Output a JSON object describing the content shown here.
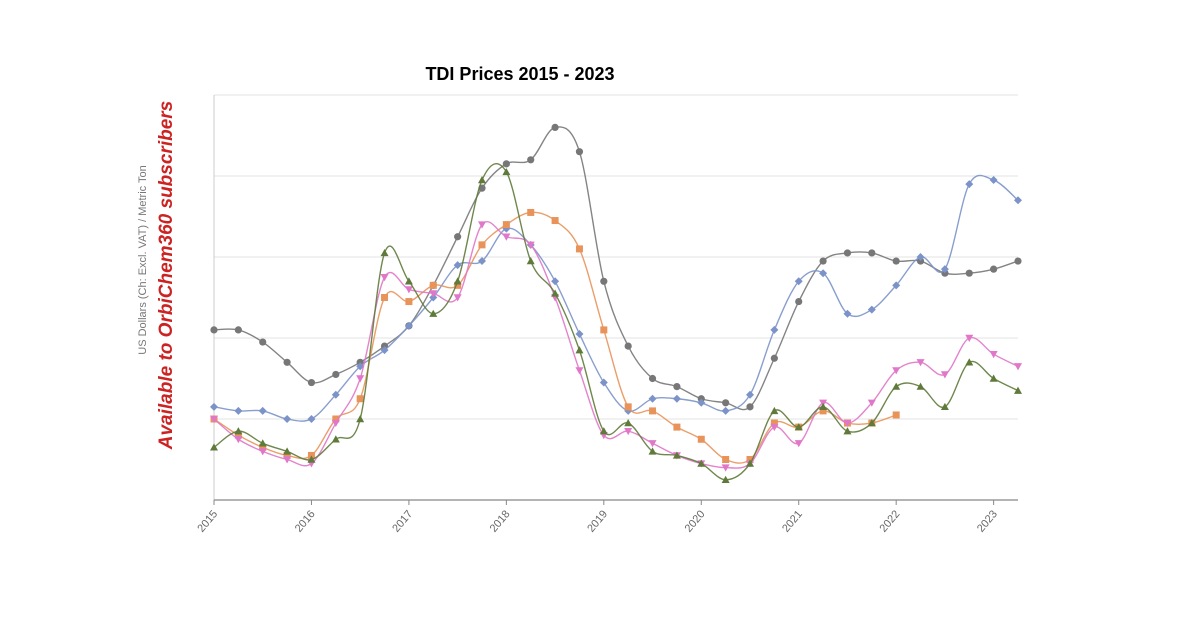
{
  "chart_data": {
    "type": "line",
    "title": "TDI Prices 2015 - 2023",
    "ylabel": "US Dollars (Ch: Excl. VAT) / Metric Ton",
    "watermark": "Available to OrbiChem360 subscribers",
    "xlim": [
      2015,
      2023.25
    ],
    "ylim": [
      0,
      10
    ],
    "x_ticks": [
      "2015",
      "2016",
      "2017",
      "2018",
      "2019",
      "2020",
      "2021",
      "2022",
      "2023"
    ],
    "y_tick_labels_visible": false,
    "grid": "horizontal",
    "series": [
      {
        "color": "#777777",
        "marker": "circle",
        "x": [
          2015.0,
          2015.25,
          2015.5,
          2015.75,
          2016.0,
          2016.25,
          2016.5,
          2016.75,
          2017.0,
          2017.25,
          2017.5,
          2017.75,
          2018.0,
          2018.25,
          2018.5,
          2018.75,
          2019.0,
          2019.25,
          2019.5,
          2019.75,
          2020.0,
          2020.25,
          2020.5,
          2020.75,
          2021.0,
          2021.25,
          2021.5,
          2021.75,
          2022.0,
          2022.25,
          2022.5,
          2022.75,
          2023.0,
          2023.25
        ],
        "values": [
          4.2,
          4.2,
          3.9,
          3.4,
          2.9,
          3.1,
          3.4,
          3.8,
          4.3,
          5.3,
          6.5,
          7.7,
          8.3,
          8.4,
          9.2,
          8.6,
          5.4,
          3.8,
          3.0,
          2.8,
          2.5,
          2.4,
          2.3,
          3.5,
          4.9,
          5.9,
          6.1,
          6.1,
          5.9,
          5.9,
          5.6,
          5.6,
          5.7,
          5.9
        ]
      },
      {
        "color": "#7b93c9",
        "marker": "diamond",
        "x": [
          2015.0,
          2015.25,
          2015.5,
          2015.75,
          2016.0,
          2016.25,
          2016.5,
          2016.75,
          2017.0,
          2017.25,
          2017.5,
          2017.75,
          2018.0,
          2018.25,
          2018.5,
          2018.75,
          2019.0,
          2019.25,
          2019.5,
          2019.75,
          2020.0,
          2020.25,
          2020.5,
          2020.75,
          2021.0,
          2021.25,
          2021.5,
          2021.75,
          2022.0,
          2022.25,
          2022.5,
          2022.75,
          2023.0,
          2023.25
        ],
        "values": [
          2.3,
          2.2,
          2.2,
          2.0,
          2.0,
          2.6,
          3.3,
          3.7,
          4.3,
          5.0,
          5.8,
          5.9,
          6.7,
          6.3,
          5.4,
          4.1,
          2.9,
          2.2,
          2.5,
          2.5,
          2.4,
          2.2,
          2.6,
          4.2,
          5.4,
          5.6,
          4.6,
          4.7,
          5.3,
          6.0,
          5.7,
          7.8,
          7.9,
          7.4
        ]
      },
      {
        "color": "#e8935a",
        "marker": "square",
        "x": [
          2015.0,
          2015.25,
          2015.5,
          2015.75,
          2016.0,
          2016.25,
          2016.5,
          2016.75,
          2017.0,
          2017.25,
          2017.5,
          2017.75,
          2018.0,
          2018.25,
          2018.5,
          2018.75,
          2019.0,
          2019.25,
          2019.5,
          2019.75,
          2020.0,
          2020.25,
          2020.5,
          2020.75,
          2021.0,
          2021.25,
          2021.5,
          2021.75,
          2022.0
        ],
        "values": [
          2.0,
          1.6,
          1.3,
          1.1,
          1.1,
          2.0,
          2.5,
          5.0,
          4.9,
          5.3,
          5.3,
          6.3,
          6.8,
          7.1,
          6.9,
          6.2,
          4.2,
          2.3,
          2.2,
          1.8,
          1.5,
          1.0,
          1.0,
          1.9,
          1.8,
          2.2,
          1.9,
          1.9,
          2.1
        ]
      },
      {
        "color": "#e077c8",
        "marker": "triangle-down",
        "x": [
          2015.0,
          2015.25,
          2015.5,
          2015.75,
          2016.0,
          2016.25,
          2016.5,
          2016.75,
          2017.0,
          2017.25,
          2017.5,
          2017.75,
          2018.0,
          2018.25,
          2018.5,
          2018.75,
          2019.0,
          2019.25,
          2019.5,
          2019.75,
          2020.0,
          2020.25,
          2020.5,
          2020.75,
          2021.0,
          2021.25,
          2021.5,
          2021.75,
          2022.0,
          2022.25,
          2022.5,
          2022.75,
          2023.0,
          2023.25
        ],
        "values": [
          2.0,
          1.5,
          1.2,
          1.0,
          0.9,
          1.9,
          3.0,
          5.5,
          5.2,
          5.1,
          5.0,
          6.8,
          6.5,
          6.3,
          5.0,
          3.2,
          1.6,
          1.7,
          1.4,
          1.1,
          0.9,
          0.8,
          0.9,
          1.8,
          1.4,
          2.4,
          1.9,
          2.4,
          3.2,
          3.4,
          3.1,
          4.0,
          3.6,
          3.3
        ]
      },
      {
        "color": "#5f7a3a",
        "marker": "triangle-up",
        "x": [
          2015.0,
          2015.25,
          2015.5,
          2015.75,
          2016.0,
          2016.25,
          2016.5,
          2016.75,
          2017.0,
          2017.25,
          2017.5,
          2017.75,
          2018.0,
          2018.25,
          2018.5,
          2018.75,
          2019.0,
          2019.25,
          2019.5,
          2019.75,
          2020.0,
          2020.25,
          2020.5,
          2020.75,
          2021.0,
          2021.25,
          2021.5,
          2021.75,
          2022.0,
          2022.25,
          2022.5,
          2022.75,
          2023.0,
          2023.25
        ],
        "values": [
          1.3,
          1.7,
          1.4,
          1.2,
          1.0,
          1.5,
          2.0,
          6.1,
          5.4,
          4.6,
          5.4,
          7.9,
          8.1,
          5.9,
          5.1,
          3.7,
          1.7,
          1.9,
          1.2,
          1.1,
          0.9,
          0.5,
          0.9,
          2.2,
          1.8,
          2.3,
          1.7,
          1.9,
          2.8,
          2.8,
          2.3,
          3.4,
          3.0,
          2.7
        ]
      }
    ]
  }
}
